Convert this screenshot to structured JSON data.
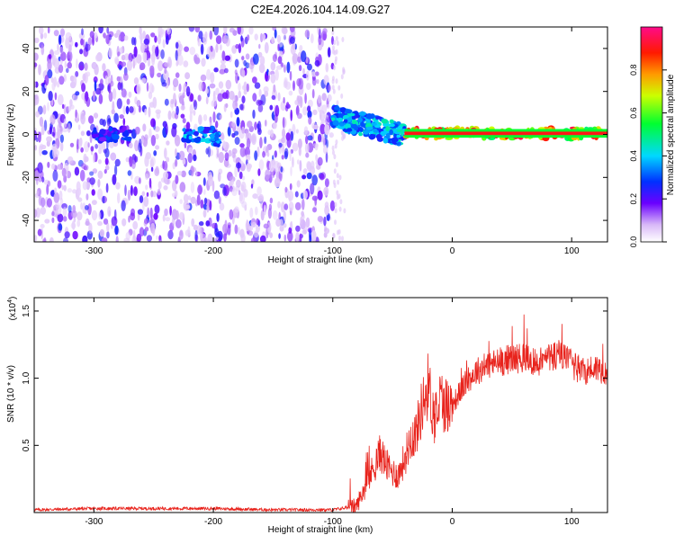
{
  "figure": {
    "title": "C2E4.2026.104.14.09.G27"
  },
  "colorbar": {
    "label": "Normalized spectral amplitude",
    "ticks": [
      {
        "value": 0.0,
        "label": "0.0"
      },
      {
        "value": 0.2,
        "label": "0.2"
      },
      {
        "value": 0.4,
        "label": "0.4"
      },
      {
        "value": 0.6,
        "label": "0.6"
      },
      {
        "value": 0.8,
        "label": "0.8"
      }
    ],
    "range": [
      0,
      1
    ]
  },
  "chart_data": [
    {
      "type": "heatmap",
      "xlabel": "Height of straight line (km)",
      "ylabel": "Frequency (Hz)",
      "xlim": [
        -350,
        130
      ],
      "ylim": [
        -50,
        50
      ],
      "xticks": [
        -300,
        -200,
        -100,
        0,
        100
      ],
      "yticks": [
        -40,
        -20,
        0,
        20,
        40
      ],
      "description_regions": [
        {
          "x_range": [
            -350,
            -100
          ],
          "y_range": [
            -50,
            50
          ],
          "level": 0.15,
          "pattern": "noise"
        },
        {
          "x_range": [
            -300,
            -270
          ],
          "y_range": [
            -3,
            3
          ],
          "level": 0.3
        },
        {
          "x_range": [
            -225,
            -195
          ],
          "y_range": [
            -5,
            3
          ],
          "level": 0.4
        },
        {
          "x_range": [
            -100,
            -40
          ],
          "y_range": [
            -8,
            12
          ],
          "level": 0.45
        },
        {
          "x_range": [
            -40,
            130
          ],
          "y_range": [
            -2,
            3
          ],
          "level": 0.9
        }
      ]
    },
    {
      "type": "line",
      "xlabel": "Height of straight line (km)",
      "ylabel": "SNR (10 * v/v)",
      "yscale_label": "(x10",
      "yscale_exp": "4",
      "yscale_close": ")",
      "xlim": [
        -350,
        130
      ],
      "ylim": [
        0,
        1.6
      ],
      "xticks": [
        -300,
        -200,
        -100,
        0,
        100
      ],
      "yticks": [
        0.5,
        1.0,
        1.5
      ],
      "ytick_labels": [
        "0.5",
        "1.0",
        "1.5"
      ],
      "color": "#e8231c",
      "series": [
        {
          "x": [
            -350,
            -300,
            -250,
            -200,
            -150,
            -120,
            -100,
            -80,
            -70,
            -60,
            -55,
            -50,
            -45,
            -40,
            -35,
            -30,
            -25,
            -20,
            -15,
            -10,
            -5,
            0,
            10,
            20,
            30,
            40,
            50,
            60,
            70,
            80,
            90,
            100,
            110,
            120,
            130
          ],
          "y": [
            0.02,
            0.03,
            0.03,
            0.03,
            0.02,
            0.02,
            0.02,
            0.05,
            0.25,
            0.45,
            0.35,
            0.3,
            0.28,
            0.4,
            0.55,
            0.6,
            0.8,
            0.95,
            0.7,
            0.85,
            0.8,
            0.8,
            0.95,
            1.05,
            1.1,
            1.12,
            1.15,
            1.15,
            1.12,
            1.15,
            1.18,
            1.1,
            1.05,
            1.08,
            1.05
          ]
        }
      ]
    }
  ]
}
